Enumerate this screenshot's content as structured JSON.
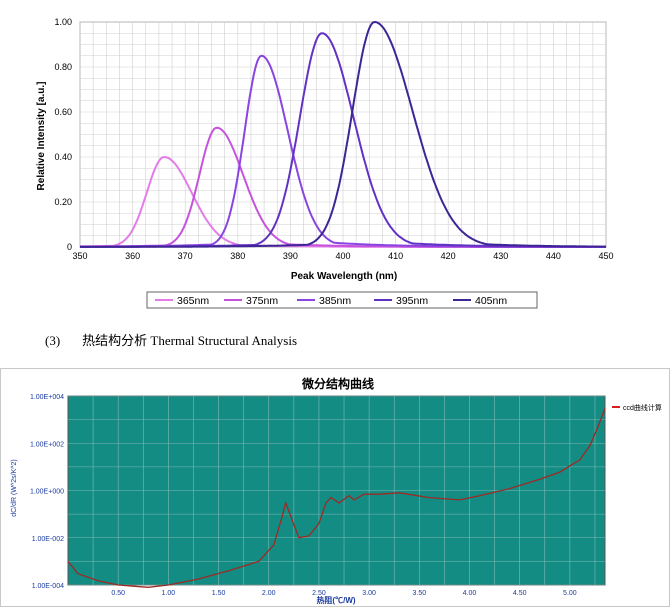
{
  "section": {
    "number": "(3)",
    "title": "热结构分析 Thermal Structural Analysis"
  },
  "chart_data": [
    {
      "type": "line",
      "xlabel": "Peak Wavelength (nm)",
      "ylabel": "Relative Intensity [a.u.]",
      "xlim": [
        350,
        450
      ],
      "ylim": [
        0,
        1.0
      ],
      "xticks": [
        "350",
        "360",
        "370",
        "380",
        "390",
        "400",
        "410",
        "420",
        "430",
        "440",
        "450"
      ],
      "yticks": [
        "0",
        "0.20",
        "0.40",
        "0.60",
        "0.80",
        "1.00"
      ],
      "grid": true,
      "legend_position": "bottom",
      "series": [
        {
          "name": "365nm",
          "color": "#e37ce8",
          "peak": 366,
          "amplitude": 0.4,
          "width_left": 3.3,
          "width_right": 5.2,
          "x": [
            350,
            355,
            358,
            360,
            362,
            364,
            365,
            366,
            367,
            368,
            369,
            370,
            372,
            374,
            376,
            378,
            380,
            385,
            390,
            395,
            400
          ],
          "y": [
            0,
            0.01,
            0.02,
            0.05,
            0.12,
            0.28,
            0.36,
            0.4,
            0.38,
            0.36,
            0.32,
            0.26,
            0.18,
            0.13,
            0.1,
            0.07,
            0.05,
            0.02,
            0.01,
            0,
            0
          ]
        },
        {
          "name": "375nm",
          "color": "#c653dd",
          "peak": 376,
          "amplitude": 0.53,
          "width_left": 3.3,
          "width_right": 5.0,
          "x": [
            350,
            360,
            365,
            368,
            370,
            372,
            374,
            375,
            376,
            377,
            378,
            379,
            380,
            382,
            384,
            386,
            388,
            390,
            395,
            400,
            405
          ],
          "y": [
            0,
            0.01,
            0.03,
            0.08,
            0.16,
            0.3,
            0.45,
            0.51,
            0.53,
            0.51,
            0.5,
            0.45,
            0.38,
            0.26,
            0.19,
            0.13,
            0.09,
            0.06,
            0.03,
            0.01,
            0
          ]
        },
        {
          "name": "385nm",
          "color": "#8a44e0",
          "peak": 384.5,
          "amplitude": 0.85,
          "width_left": 3.2,
          "width_right": 5.0,
          "x": [
            360,
            370,
            374,
            377,
            379,
            381,
            383,
            384,
            385,
            386,
            387,
            388,
            390,
            392,
            394,
            396,
            398,
            400,
            405,
            410,
            420
          ],
          "y": [
            0,
            0.02,
            0.06,
            0.16,
            0.3,
            0.52,
            0.74,
            0.84,
            0.85,
            0.83,
            0.78,
            0.7,
            0.52,
            0.36,
            0.26,
            0.19,
            0.13,
            0.09,
            0.04,
            0.02,
            0
          ]
        },
        {
          "name": "395nm",
          "color": "#6232c4",
          "peak": 396,
          "amplitude": 0.95,
          "width_left": 4.2,
          "width_right": 6.0,
          "x": [
            370,
            380,
            384,
            387,
            389,
            391,
            393,
            395,
            396,
            397,
            398,
            400,
            402,
            404,
            406,
            408,
            410,
            415,
            420,
            430,
            440
          ],
          "y": [
            0,
            0.03,
            0.1,
            0.25,
            0.42,
            0.66,
            0.88,
            0.94,
            0.95,
            0.93,
            0.88,
            0.7,
            0.5,
            0.34,
            0.22,
            0.14,
            0.09,
            0.04,
            0.02,
            0.01,
            0
          ]
        },
        {
          "name": "405nm",
          "color": "#3e2596",
          "peak": 406,
          "amplitude": 1.0,
          "width_left": 4.2,
          "width_right": 7.2,
          "x": [
            380,
            390,
            394,
            397,
            399,
            401,
            403,
            405,
            406,
            407,
            408,
            410,
            412,
            414,
            416,
            418,
            420,
            425,
            430,
            440,
            450
          ],
          "y": [
            0,
            0.03,
            0.1,
            0.26,
            0.42,
            0.64,
            0.86,
            0.99,
            1.0,
            0.99,
            0.95,
            0.86,
            0.72,
            0.6,
            0.47,
            0.36,
            0.27,
            0.13,
            0.06,
            0.02,
            0.01
          ]
        }
      ]
    },
    {
      "type": "line",
      "title": "微分结构曲线",
      "xlabel": "热阻(℃/W)",
      "ylabel": "dC/dR (W^2s/K^2)",
      "x_scale": "linear",
      "y_scale": "log",
      "xlim": [
        0,
        5.35
      ],
      "ylim": [
        0.0001,
        10000
      ],
      "xticks": [
        "0.50",
        "1.00",
        "1.50",
        "2.00",
        "2.50",
        "3.00",
        "3.50",
        "4.00",
        "4.50",
        "5.00"
      ],
      "yticks": [
        "1.00E-004",
        "1.00E-002",
        "1.00E+000",
        "1.00E+002",
        "1.00E+004"
      ],
      "background_color": "#138c84",
      "grid": true,
      "legend_position": "right",
      "series": [
        {
          "name": "ccd曲线计算",
          "color": "#9c2b24",
          "x": [
            0,
            0.1,
            0.3,
            0.5,
            0.8,
            1.0,
            1.3,
            1.6,
            1.9,
            2.05,
            2.12,
            2.17,
            2.22,
            2.3,
            2.4,
            2.5,
            2.57,
            2.62,
            2.7,
            2.8,
            2.85,
            2.95,
            3.1,
            3.3,
            3.6,
            3.9,
            4.1,
            4.4,
            4.7,
            4.9,
            5.1,
            5.2,
            5.28,
            5.35
          ],
          "y": [
            0.001,
            0.0003,
            0.00015,
            0.0001,
            8e-05,
            0.0001,
            0.00018,
            0.0004,
            0.001,
            0.005,
            0.05,
            0.3,
            0.08,
            0.01,
            0.012,
            0.04,
            0.3,
            0.5,
            0.3,
            0.6,
            0.4,
            0.7,
            0.7,
            0.8,
            0.5,
            0.4,
            0.6,
            1.2,
            3,
            6,
            20,
            80,
            500,
            3000
          ]
        }
      ]
    }
  ]
}
